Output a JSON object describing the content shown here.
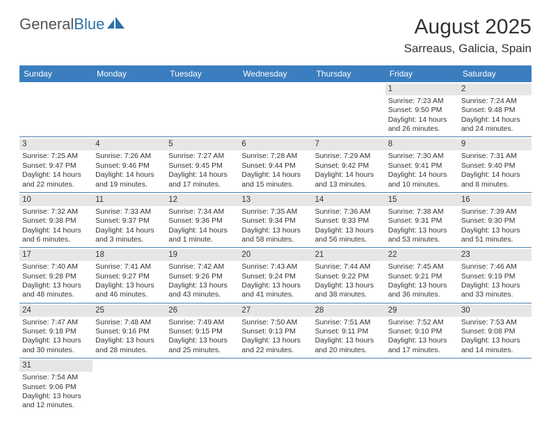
{
  "logo": {
    "text1": "General",
    "text2": "Blue"
  },
  "title": "August 2025",
  "location": "Sarreaus, Galicia, Spain",
  "colors": {
    "header_bg": "#3a7ebf",
    "header_text": "#ffffff",
    "daynum_bg": "#e6e6e6",
    "week_border": "#4a7fb0",
    "body_text": "#333333"
  },
  "day_names": [
    "Sunday",
    "Monday",
    "Tuesday",
    "Wednesday",
    "Thursday",
    "Friday",
    "Saturday"
  ],
  "weeks": [
    [
      null,
      null,
      null,
      null,
      null,
      {
        "d": "1",
        "sr": "Sunrise: 7:23 AM",
        "ss": "Sunset: 9:50 PM",
        "dl1": "Daylight: 14 hours",
        "dl2": "and 26 minutes."
      },
      {
        "d": "2",
        "sr": "Sunrise: 7:24 AM",
        "ss": "Sunset: 9:48 PM",
        "dl1": "Daylight: 14 hours",
        "dl2": "and 24 minutes."
      }
    ],
    [
      {
        "d": "3",
        "sr": "Sunrise: 7:25 AM",
        "ss": "Sunset: 9:47 PM",
        "dl1": "Daylight: 14 hours",
        "dl2": "and 22 minutes."
      },
      {
        "d": "4",
        "sr": "Sunrise: 7:26 AM",
        "ss": "Sunset: 9:46 PM",
        "dl1": "Daylight: 14 hours",
        "dl2": "and 19 minutes."
      },
      {
        "d": "5",
        "sr": "Sunrise: 7:27 AM",
        "ss": "Sunset: 9:45 PM",
        "dl1": "Daylight: 14 hours",
        "dl2": "and 17 minutes."
      },
      {
        "d": "6",
        "sr": "Sunrise: 7:28 AM",
        "ss": "Sunset: 9:44 PM",
        "dl1": "Daylight: 14 hours",
        "dl2": "and 15 minutes."
      },
      {
        "d": "7",
        "sr": "Sunrise: 7:29 AM",
        "ss": "Sunset: 9:42 PM",
        "dl1": "Daylight: 14 hours",
        "dl2": "and 13 minutes."
      },
      {
        "d": "8",
        "sr": "Sunrise: 7:30 AM",
        "ss": "Sunset: 9:41 PM",
        "dl1": "Daylight: 14 hours",
        "dl2": "and 10 minutes."
      },
      {
        "d": "9",
        "sr": "Sunrise: 7:31 AM",
        "ss": "Sunset: 9:40 PM",
        "dl1": "Daylight: 14 hours",
        "dl2": "and 8 minutes."
      }
    ],
    [
      {
        "d": "10",
        "sr": "Sunrise: 7:32 AM",
        "ss": "Sunset: 9:38 PM",
        "dl1": "Daylight: 14 hours",
        "dl2": "and 6 minutes."
      },
      {
        "d": "11",
        "sr": "Sunrise: 7:33 AM",
        "ss": "Sunset: 9:37 PM",
        "dl1": "Daylight: 14 hours",
        "dl2": "and 3 minutes."
      },
      {
        "d": "12",
        "sr": "Sunrise: 7:34 AM",
        "ss": "Sunset: 9:36 PM",
        "dl1": "Daylight: 14 hours",
        "dl2": "and 1 minute."
      },
      {
        "d": "13",
        "sr": "Sunrise: 7:35 AM",
        "ss": "Sunset: 9:34 PM",
        "dl1": "Daylight: 13 hours",
        "dl2": "and 58 minutes."
      },
      {
        "d": "14",
        "sr": "Sunrise: 7:36 AM",
        "ss": "Sunset: 9:33 PM",
        "dl1": "Daylight: 13 hours",
        "dl2": "and 56 minutes."
      },
      {
        "d": "15",
        "sr": "Sunrise: 7:38 AM",
        "ss": "Sunset: 9:31 PM",
        "dl1": "Daylight: 13 hours",
        "dl2": "and 53 minutes."
      },
      {
        "d": "16",
        "sr": "Sunrise: 7:39 AM",
        "ss": "Sunset: 9:30 PM",
        "dl1": "Daylight: 13 hours",
        "dl2": "and 51 minutes."
      }
    ],
    [
      {
        "d": "17",
        "sr": "Sunrise: 7:40 AM",
        "ss": "Sunset: 9:28 PM",
        "dl1": "Daylight: 13 hours",
        "dl2": "and 48 minutes."
      },
      {
        "d": "18",
        "sr": "Sunrise: 7:41 AM",
        "ss": "Sunset: 9:27 PM",
        "dl1": "Daylight: 13 hours",
        "dl2": "and 46 minutes."
      },
      {
        "d": "19",
        "sr": "Sunrise: 7:42 AM",
        "ss": "Sunset: 9:26 PM",
        "dl1": "Daylight: 13 hours",
        "dl2": "and 43 minutes."
      },
      {
        "d": "20",
        "sr": "Sunrise: 7:43 AM",
        "ss": "Sunset: 9:24 PM",
        "dl1": "Daylight: 13 hours",
        "dl2": "and 41 minutes."
      },
      {
        "d": "21",
        "sr": "Sunrise: 7:44 AM",
        "ss": "Sunset: 9:22 PM",
        "dl1": "Daylight: 13 hours",
        "dl2": "and 38 minutes."
      },
      {
        "d": "22",
        "sr": "Sunrise: 7:45 AM",
        "ss": "Sunset: 9:21 PM",
        "dl1": "Daylight: 13 hours",
        "dl2": "and 36 minutes."
      },
      {
        "d": "23",
        "sr": "Sunrise: 7:46 AM",
        "ss": "Sunset: 9:19 PM",
        "dl1": "Daylight: 13 hours",
        "dl2": "and 33 minutes."
      }
    ],
    [
      {
        "d": "24",
        "sr": "Sunrise: 7:47 AM",
        "ss": "Sunset: 9:18 PM",
        "dl1": "Daylight: 13 hours",
        "dl2": "and 30 minutes."
      },
      {
        "d": "25",
        "sr": "Sunrise: 7:48 AM",
        "ss": "Sunset: 9:16 PM",
        "dl1": "Daylight: 13 hours",
        "dl2": "and 28 minutes."
      },
      {
        "d": "26",
        "sr": "Sunrise: 7:49 AM",
        "ss": "Sunset: 9:15 PM",
        "dl1": "Daylight: 13 hours",
        "dl2": "and 25 minutes."
      },
      {
        "d": "27",
        "sr": "Sunrise: 7:50 AM",
        "ss": "Sunset: 9:13 PM",
        "dl1": "Daylight: 13 hours",
        "dl2": "and 22 minutes."
      },
      {
        "d": "28",
        "sr": "Sunrise: 7:51 AM",
        "ss": "Sunset: 9:11 PM",
        "dl1": "Daylight: 13 hours",
        "dl2": "and 20 minutes."
      },
      {
        "d": "29",
        "sr": "Sunrise: 7:52 AM",
        "ss": "Sunset: 9:10 PM",
        "dl1": "Daylight: 13 hours",
        "dl2": "and 17 minutes."
      },
      {
        "d": "30",
        "sr": "Sunrise: 7:53 AM",
        "ss": "Sunset: 9:08 PM",
        "dl1": "Daylight: 13 hours",
        "dl2": "and 14 minutes."
      }
    ],
    [
      {
        "d": "31",
        "sr": "Sunrise: 7:54 AM",
        "ss": "Sunset: 9:06 PM",
        "dl1": "Daylight: 13 hours",
        "dl2": "and 12 minutes."
      },
      null,
      null,
      null,
      null,
      null,
      null
    ]
  ]
}
